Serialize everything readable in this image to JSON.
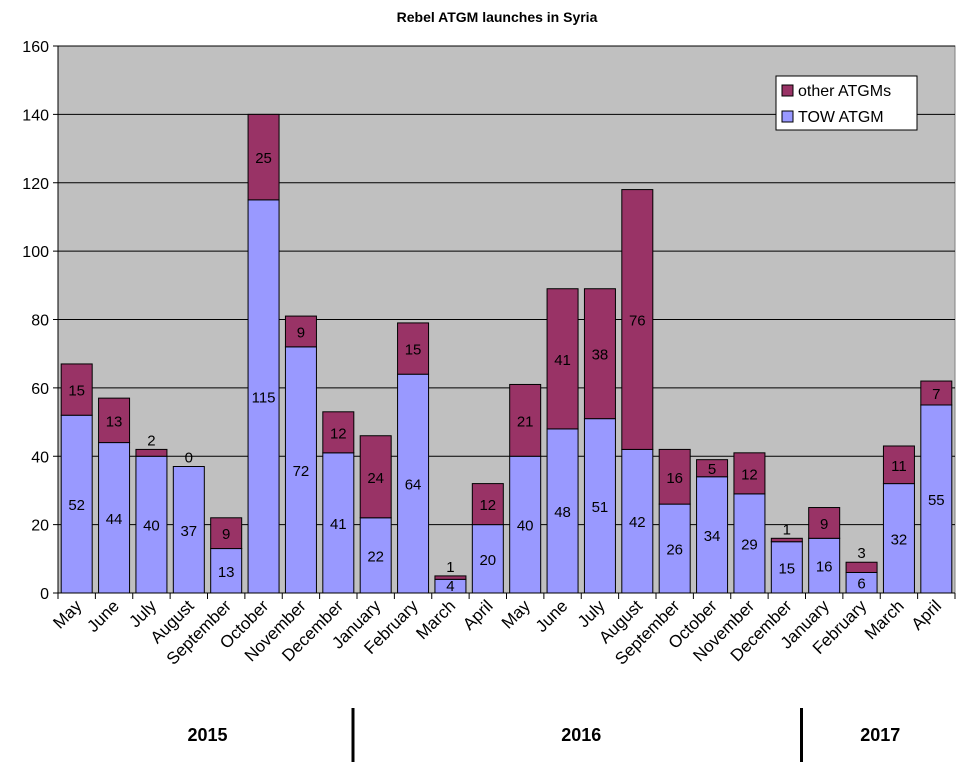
{
  "chart_data": {
    "type": "bar",
    "stacked": true,
    "title": "Rebel ATGM launches in Syria",
    "xlabel": "",
    "ylabel": "",
    "ylim": [
      0,
      160
    ],
    "yticks": [
      0,
      20,
      40,
      60,
      80,
      100,
      120,
      140,
      160
    ],
    "grid": true,
    "legend_position": "top-right",
    "categories": [
      "May",
      "June",
      "July",
      "August",
      "September",
      "October",
      "November",
      "December",
      "January",
      "February",
      "March",
      "April",
      "May",
      "June",
      "July",
      "August",
      "September",
      "October",
      "November",
      "December",
      "January",
      "February",
      "March",
      "April"
    ],
    "year_groups": [
      {
        "label": "2015",
        "count": 8
      },
      {
        "label": "2016",
        "count": 12
      },
      {
        "label": "2017",
        "count": 4
      }
    ],
    "series": [
      {
        "name": "TOW ATGM",
        "color": "#9999FF",
        "values": [
          52,
          44,
          40,
          37,
          13,
          115,
          72,
          41,
          22,
          64,
          4,
          20,
          40,
          48,
          51,
          42,
          26,
          34,
          29,
          15,
          16,
          6,
          32,
          55
        ]
      },
      {
        "name": "other ATGMs",
        "color": "#993366",
        "values": [
          15,
          13,
          2,
          0,
          9,
          25,
          9,
          12,
          24,
          15,
          1,
          12,
          21,
          41,
          38,
          76,
          16,
          5,
          12,
          1,
          9,
          3,
          11,
          7
        ]
      }
    ],
    "plot_background": "#C0C0C0"
  }
}
